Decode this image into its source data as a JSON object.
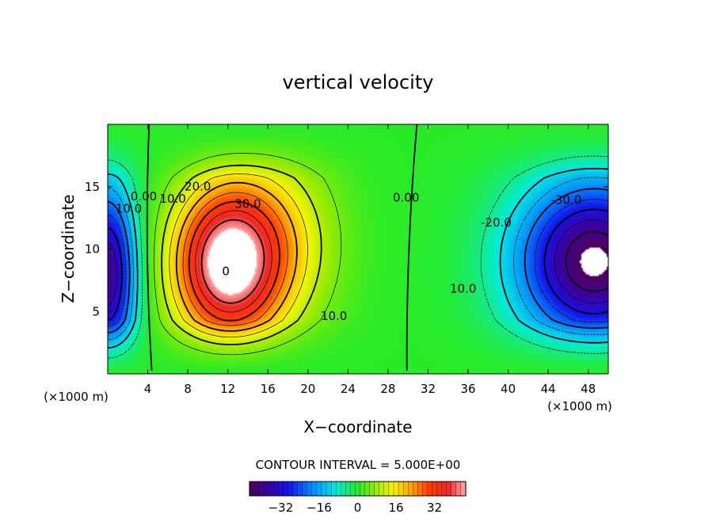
{
  "chart_data": {
    "type": "heatmap",
    "title": "vertical velocity",
    "xlabel": "X−coordinate",
    "ylabel": "Z−coordinate",
    "x_unit_left": "(×1000 m)",
    "x_unit_right": "(×1000 m)",
    "xlim": [
      0,
      50
    ],
    "ylim": [
      0,
      20
    ],
    "x_ticks": [
      4,
      8,
      12,
      16,
      20,
      24,
      28,
      32,
      36,
      40,
      44,
      48
    ],
    "y_ticks": [
      5,
      10,
      15
    ],
    "contour_interval_text": "CONTOUR INTERVAL = 5.000E+00",
    "contour_interval": 5,
    "colorbar": {
      "range": [
        -45,
        45
      ],
      "ticks": [
        -32,
        -16,
        0,
        16,
        32
      ],
      "tick_labels": [
        "−32",
        "−16",
        "0",
        "16",
        "32"
      ]
    },
    "contour_labels": [
      {
        "text": "0.00",
        "x": 3.6,
        "y": 14.2
      },
      {
        "text": "10.0",
        "x": 2.1,
        "y": 13.2
      },
      {
        "text": "10.0",
        "x": 6.5,
        "y": 14.0
      },
      {
        "text": "20.0",
        "x": 9.0,
        "y": 15.0
      },
      {
        "text": "30.0",
        "x": 14.0,
        "y": 13.6
      },
      {
        "text": "0",
        "x": 11.8,
        "y": 8.2
      },
      {
        "text": "10.0",
        "x": 22.6,
        "y": 4.6
      },
      {
        "text": "0.00",
        "x": 29.8,
        "y": 14.1
      },
      {
        "text": "-20.0",
        "x": 38.8,
        "y": 12.1
      },
      {
        "text": "-30.0",
        "x": 45.8,
        "y": 13.9
      },
      {
        "text": "10.0",
        "x": 35.5,
        "y": 6.8
      }
    ],
    "features": [
      {
        "sign": "positive",
        "center_x": 11.5,
        "center_z": 9.0,
        "peak": 45
      },
      {
        "sign": "negative",
        "center_x": 48.5,
        "center_z": 9.0,
        "peak": -45
      },
      {
        "sign": "negative",
        "center_x": 0.0,
        "center_z": 8.0,
        "peak": -40
      },
      {
        "sign": "zero_line",
        "x": 29.8
      },
      {
        "sign": "zero_line",
        "x": 5.0
      }
    ]
  }
}
